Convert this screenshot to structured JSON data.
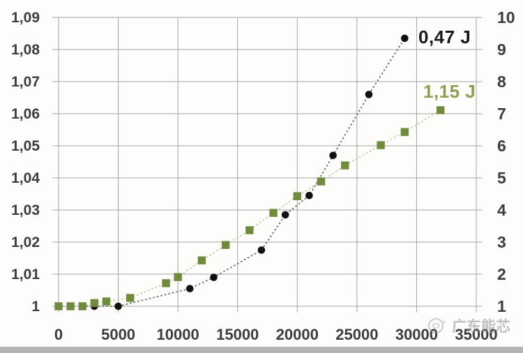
{
  "watermark": {
    "text": "广东能芯"
  },
  "chart_data": {
    "type": "scatter",
    "title": "",
    "grid": true,
    "legend_position": "inline-right",
    "x_axis": {
      "min": 0,
      "max": 35000,
      "step": 5000,
      "labels": [
        "0",
        "5000",
        "10000",
        "15000",
        "20000",
        "25000",
        "30000",
        "35000"
      ]
    },
    "left_axis": {
      "min": 1,
      "max": 1.09,
      "step": 0.01,
      "labels": [
        "1",
        "1,01",
        "1,02",
        "1,03",
        "1,04",
        "1,05",
        "1,06",
        "1,07",
        "1,08",
        "1,09"
      ]
    },
    "right_axis": {
      "min": 1,
      "max": 10,
      "step": 1,
      "labels": [
        "1",
        "2",
        "3",
        "4",
        "5",
        "6",
        "7",
        "8",
        "9",
        "10"
      ]
    },
    "series": [
      {
        "name": "0,47 J",
        "axis": "right",
        "marker": "circle",
        "color": "#111111",
        "line_color": "#5a5a5a",
        "label_color": "#1a1a1a",
        "points": [
          [
            0,
            1.0
          ],
          [
            1000,
            1.0
          ],
          [
            2000,
            1.0
          ],
          [
            3000,
            1.0
          ],
          [
            5000,
            1.0
          ],
          [
            11000,
            1.55
          ],
          [
            13000,
            1.9
          ],
          [
            17000,
            2.75
          ],
          [
            19000,
            3.85
          ],
          [
            21000,
            4.45
          ],
          [
            23000,
            5.7
          ],
          [
            26000,
            7.6
          ],
          [
            29000,
            9.35
          ]
        ]
      },
      {
        "name": "1,15 J",
        "axis": "left",
        "marker": "square",
        "color": "#6f8c3d",
        "line_color": "#bdc89b",
        "label_color": "#8ba050",
        "points": [
          [
            0,
            1.0
          ],
          [
            1000,
            1.0
          ],
          [
            2000,
            1.0
          ],
          [
            3000,
            1.001
          ],
          [
            4000,
            1.0015
          ],
          [
            6000,
            1.0026
          ],
          [
            9000,
            1.0072
          ],
          [
            10000,
            1.0091
          ],
          [
            12000,
            1.0143
          ],
          [
            14000,
            1.0191
          ],
          [
            16000,
            1.0237
          ],
          [
            18000,
            1.0291
          ],
          [
            20000,
            1.0343
          ],
          [
            22000,
            1.0389
          ],
          [
            24000,
            1.0439
          ],
          [
            27000,
            1.0502
          ],
          [
            29000,
            1.0543
          ],
          [
            32000,
            1.0611
          ]
        ]
      }
    ],
    "gridline_color": "#a3a3a3"
  }
}
